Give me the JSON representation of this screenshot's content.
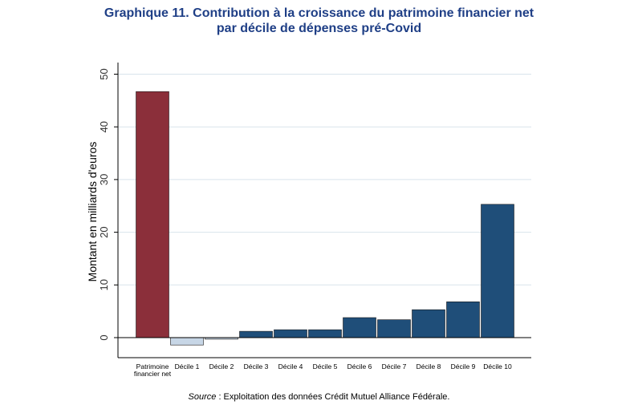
{
  "chart_data": {
    "type": "bar",
    "title_line1": "Graphique 11. Contribution à la croissance du patrimoine financier net",
    "title_line2": "par décile de dépenses pré-Covid",
    "ylabel": "Montant en milliards d'euros",
    "xlabel": "",
    "ylim": [
      -2,
      52
    ],
    "yticks": [
      0,
      10,
      20,
      30,
      40,
      50
    ],
    "grid": true,
    "categories": [
      [
        "Patrimoine",
        "financier net"
      ],
      [
        "Décile 1"
      ],
      [
        "Décile 2"
      ],
      [
        "Décile 3"
      ],
      [
        "Décile 4"
      ],
      [
        "Décile 5"
      ],
      [
        "Décile 6"
      ],
      [
        "Décile 7"
      ],
      [
        "Décile 8"
      ],
      [
        "Décile 9"
      ],
      [
        "Décile 10"
      ]
    ],
    "values": [
      46.7,
      -1.4,
      -0.3,
      1.2,
      1.5,
      1.5,
      3.8,
      3.4,
      5.3,
      6.8,
      25.3
    ],
    "colors": {
      "total": "#8b2f3a",
      "positive": "#1f4e79",
      "negative": "#c7d6e6",
      "grid": "#d9e4ec",
      "frame": "#000000"
    }
  },
  "source": {
    "label": "Source",
    "text": " : Exploitation des données Crédit Mutuel Alliance Fédérale."
  }
}
